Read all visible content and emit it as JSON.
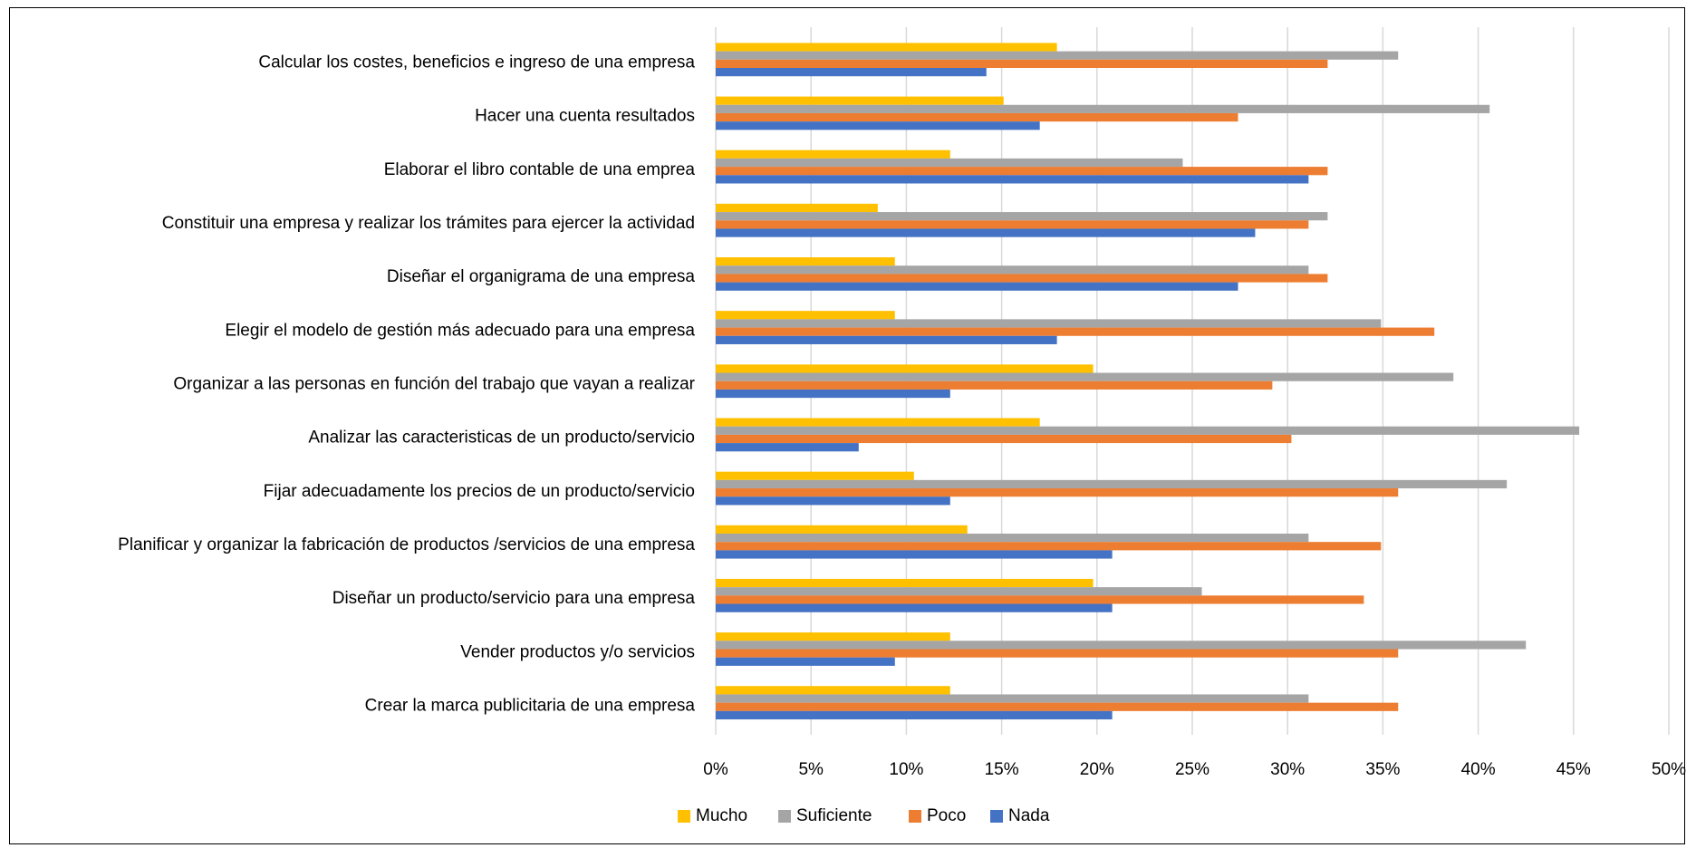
{
  "chart_data": {
    "type": "bar",
    "orientation": "horizontal",
    "categories": [
      "Calcular los costes, beneficios e ingreso de una empresa",
      "Hacer una cuenta resultados",
      "Elaborar el libro contable de una emprea",
      "Constituir una empresa y realizar los trámites para ejercer la actividad",
      "Diseñar el organigrama de una empresa",
      "Elegir el modelo de gestión más adecuado para una empresa",
      "Organizar a las personas en función del trabajo que vayan a realizar",
      "Analizar las caracteristicas de un producto/servicio",
      "Fijar adecuadamente los precios de un producto/servicio",
      "Planificar y organizar la fabricación de productos /servicios de una empresa",
      "Diseñar un producto/servicio para una empresa",
      "Vender productos y/o servicios",
      "Crear la marca publicitaria de una empresa"
    ],
    "series": [
      {
        "name": "Mucho",
        "color": "#FFC000",
        "values": [
          17.9,
          15.1,
          12.3,
          8.5,
          9.4,
          9.4,
          19.8,
          17.0,
          10.4,
          13.2,
          19.8,
          12.3,
          12.3
        ]
      },
      {
        "name": "Suficiente",
        "color": "#A5A5A5",
        "values": [
          35.8,
          40.6,
          24.5,
          32.1,
          31.1,
          34.9,
          38.7,
          45.3,
          41.5,
          31.1,
          25.5,
          42.5,
          31.1
        ]
      },
      {
        "name": "Poco",
        "color": "#ED7D31",
        "values": [
          32.1,
          27.4,
          32.1,
          31.1,
          32.1,
          37.7,
          29.2,
          30.2,
          35.8,
          34.9,
          34.0,
          35.8,
          35.8
        ]
      },
      {
        "name": "Nada",
        "color": "#4472C4",
        "values": [
          14.2,
          17.0,
          31.1,
          28.3,
          27.4,
          17.9,
          12.3,
          7.5,
          12.3,
          20.8,
          20.8,
          9.4,
          20.8
        ]
      }
    ],
    "xlim": [
      0,
      50
    ],
    "xticks": [
      "0%",
      "5%",
      "10%",
      "15%",
      "20%",
      "25%",
      "30%",
      "35%",
      "40%",
      "45%",
      "50%"
    ],
    "grid": true,
    "legend_position": "bottom"
  }
}
